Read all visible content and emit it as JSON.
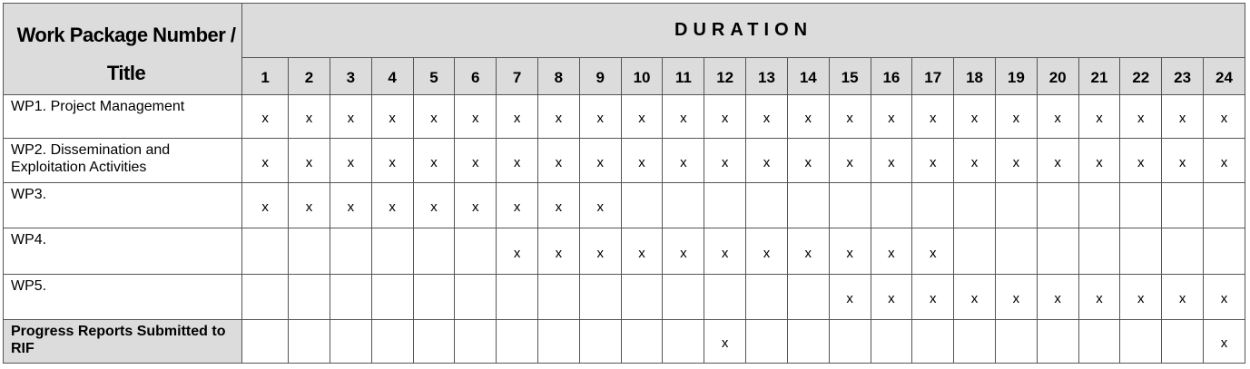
{
  "header": {
    "title": "Work Package Number / Title",
    "duration_label": "DURATION",
    "months": [
      "1",
      "2",
      "3",
      "4",
      "5",
      "6",
      "7",
      "8",
      "9",
      "10",
      "11",
      "12",
      "13",
      "14",
      "15",
      "16",
      "17",
      "18",
      "19",
      "20",
      "21",
      "22",
      "23",
      "24"
    ]
  },
  "mark_symbol": "x",
  "rows": [
    {
      "label": "WP1. Project Management",
      "bold": false,
      "months": [
        1,
        2,
        3,
        4,
        5,
        6,
        7,
        8,
        9,
        10,
        11,
        12,
        13,
        14,
        15,
        16,
        17,
        18,
        19,
        20,
        21,
        22,
        23,
        24
      ]
    },
    {
      "label": "WP2. Dissemination and Exploitation Activities",
      "bold": false,
      "months": [
        1,
        2,
        3,
        4,
        5,
        6,
        7,
        8,
        9,
        10,
        11,
        12,
        13,
        14,
        15,
        16,
        17,
        18,
        19,
        20,
        21,
        22,
        23,
        24
      ]
    },
    {
      "label": "WP3.",
      "bold": false,
      "months": [
        1,
        2,
        3,
        4,
        5,
        6,
        7,
        8,
        9
      ]
    },
    {
      "label": "WP4.",
      "bold": false,
      "months": [
        7,
        8,
        9,
        10,
        11,
        12,
        13,
        14,
        15,
        16,
        17
      ]
    },
    {
      "label": "WP5.",
      "bold": false,
      "months": [
        15,
        16,
        17,
        18,
        19,
        20,
        21,
        22,
        23,
        24
      ]
    },
    {
      "label": "Progress Reports Submitted to RIF",
      "bold": true,
      "months": [
        12,
        24
      ]
    }
  ]
}
